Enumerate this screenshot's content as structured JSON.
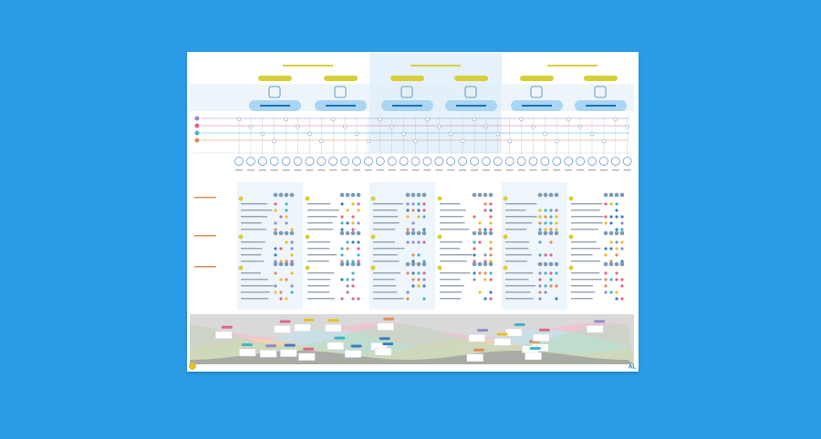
{
  "logo": "AL"
}
